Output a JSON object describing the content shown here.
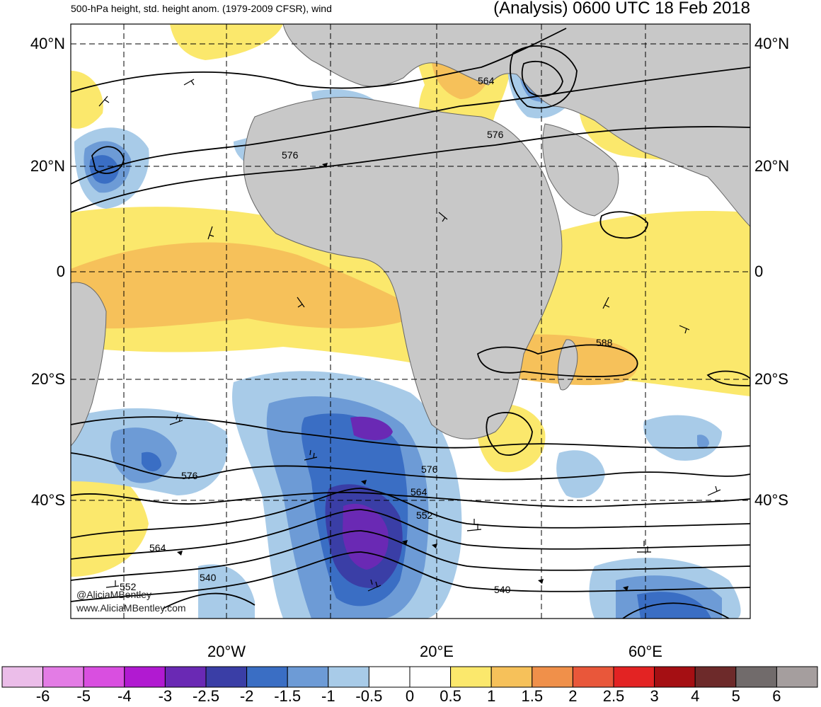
{
  "title": {
    "left": "500-hPa height, std. height anom. (1979-2009 CFSR), wind",
    "right": "(Analysis) 0600 UTC 18 Feb 2018"
  },
  "lat_labels": [
    "40°N",
    "20°N",
    "0",
    "20°S",
    "40°S"
  ],
  "lon_labels": [
    "20°W",
    "20°E",
    "60°E"
  ],
  "contour_labels": [
    "564",
    "576",
    "576",
    "588",
    "576",
    "576",
    "564",
    "552",
    "564",
    "552",
    "540",
    "540"
  ],
  "credits": [
    "@AliciaMBentley",
    "www.AliciaMBentley.com"
  ],
  "colorbar": {
    "labels": [
      "-6",
      "-5",
      "-4",
      "-3",
      "-2.5",
      "-2",
      "-1.5",
      "-1",
      "-0.5",
      "0",
      "0.5",
      "1",
      "1.5",
      "2",
      "2.5",
      "3",
      "4",
      "5",
      "6"
    ],
    "colors": [
      "#ebbde9",
      "#e37ce5",
      "#d94fe0",
      "#b11ad1",
      "#6a29b4",
      "#3a3ea6",
      "#3a6ec4",
      "#6d9bd6",
      "#a8cbe8",
      "#ffffff",
      "#ffffff",
      "#fbe86c",
      "#f6c15a",
      "#f0904a",
      "#e9573a",
      "#e32323",
      "#a50f13",
      "#6d2a2a",
      "#716b6b",
      "#a59e9e"
    ]
  },
  "colors": {
    "land": "#c8c8c8",
    "contour": "#000000",
    "grid": "#000000"
  }
}
